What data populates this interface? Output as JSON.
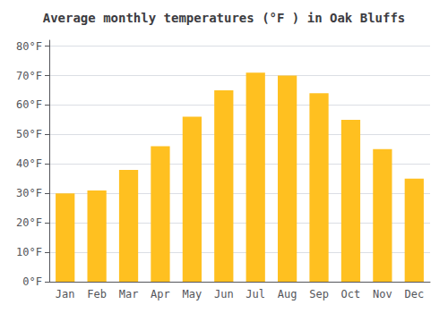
{
  "chart_data": {
    "type": "bar",
    "title": "Average monthly temperatures (°F ) in Oak Bluffs",
    "categories": [
      "Jan",
      "Feb",
      "Mar",
      "Apr",
      "May",
      "Jun",
      "Jul",
      "Aug",
      "Sep",
      "Oct",
      "Nov",
      "Dec"
    ],
    "values": [
      30,
      31,
      38,
      46,
      56,
      65,
      71,
      70,
      64,
      55,
      45,
      35
    ],
    "color": "#FFC020",
    "ylim": [
      0,
      82
    ],
    "yticks": [
      {
        "value": 0,
        "label": "0°F"
      },
      {
        "value": 10,
        "label": "10°F"
      },
      {
        "value": 20,
        "label": "20°F"
      },
      {
        "value": 30,
        "label": "30°F"
      },
      {
        "value": 40,
        "label": "40°F"
      },
      {
        "value": 50,
        "label": "50°F"
      },
      {
        "value": 60,
        "label": "60°F"
      },
      {
        "value": 70,
        "label": "70°F"
      },
      {
        "value": 80,
        "label": "80°F"
      }
    ],
    "grid": true
  }
}
